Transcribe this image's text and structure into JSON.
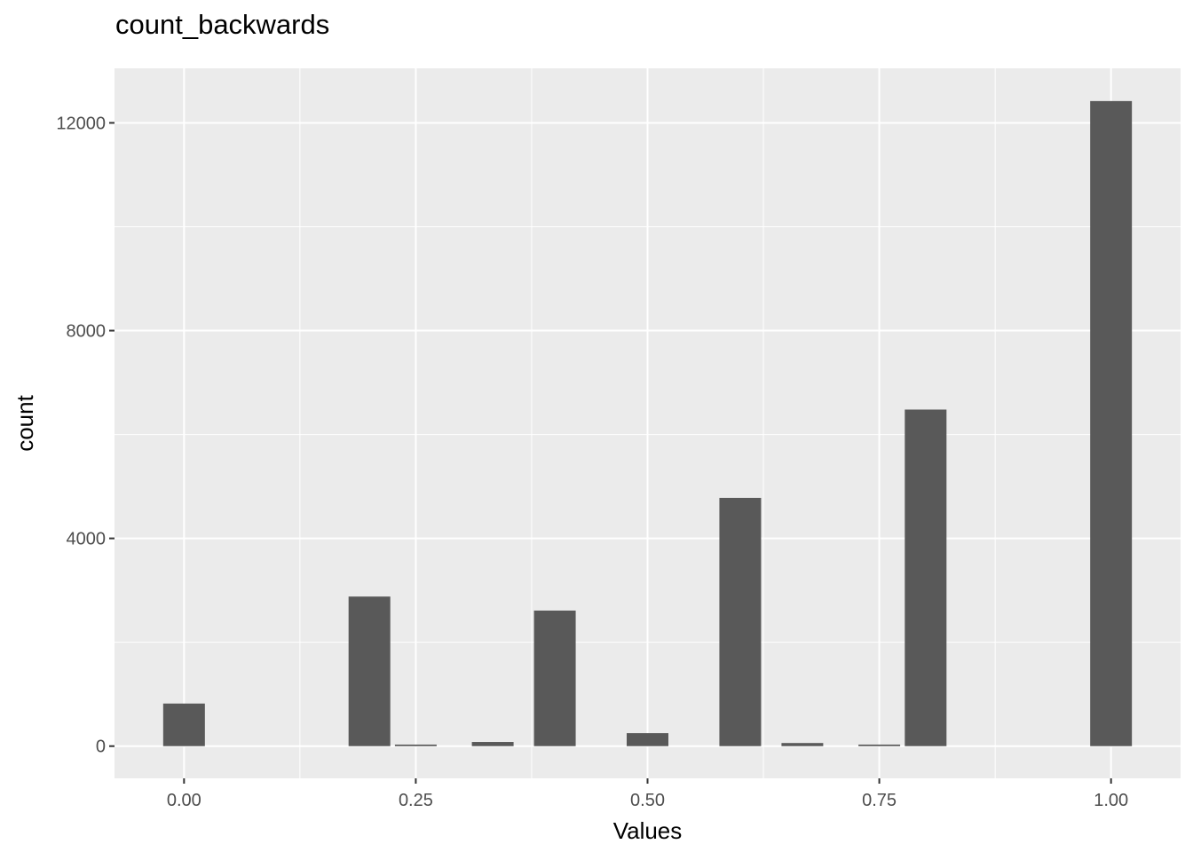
{
  "chart_data": {
    "type": "bar",
    "title": "count_backwards",
    "xlabel": "Values",
    "ylabel": "count",
    "x_ticks": [
      "0.00",
      "0.25",
      "0.50",
      "0.75",
      "1.00"
    ],
    "x_tick_values": [
      0.0,
      0.25,
      0.5,
      0.75,
      1.0
    ],
    "y_ticks": [
      "0",
      "4000",
      "8000",
      "12000"
    ],
    "y_tick_values": [
      0,
      4000,
      8000,
      12000
    ],
    "xlim": [
      -0.075,
      1.075
    ],
    "ylim": [
      -620,
      13050
    ],
    "bar_width": 0.045,
    "bars": [
      {
        "x": 0.0,
        "value": 820
      },
      {
        "x": 0.2,
        "value": 2880
      },
      {
        "x": 0.25,
        "value": 30
      },
      {
        "x": 0.333,
        "value": 80
      },
      {
        "x": 0.4,
        "value": 2610
      },
      {
        "x": 0.5,
        "value": 250
      },
      {
        "x": 0.6,
        "value": 4780
      },
      {
        "x": 0.667,
        "value": 60
      },
      {
        "x": 0.75,
        "value": 30
      },
      {
        "x": 0.8,
        "value": 6480
      },
      {
        "x": 1.0,
        "value": 12420
      }
    ],
    "colors": {
      "panel": "#ebebeb",
      "grid": "#ffffff",
      "bar": "#595959"
    },
    "grid": true,
    "legend": "none"
  }
}
